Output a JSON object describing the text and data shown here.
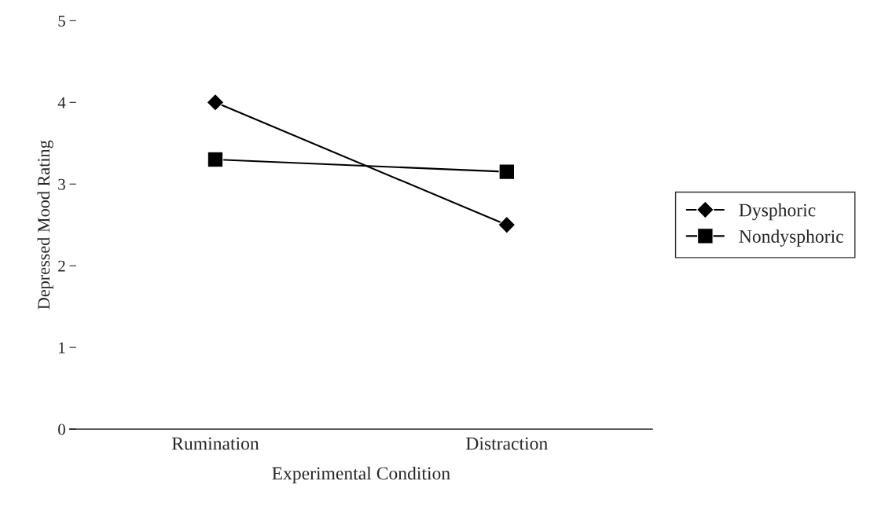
{
  "chart_data": {
    "type": "line",
    "xlabel": "Experimental Condition",
    "ylabel": "Depressed Mood Rating",
    "categories": [
      "Rumination",
      "Distraction"
    ],
    "series": [
      {
        "name": "Dysphoric",
        "color": "#000000",
        "values": [
          4.0,
          2.5
        ],
        "marker": "diamond"
      },
      {
        "name": "Nondysphoric",
        "color": "#000000",
        "values": [
          3.3,
          3.15
        ],
        "marker": "square"
      }
    ],
    "ylim": [
      0,
      5
    ],
    "yticks": [
      0,
      1,
      2,
      3,
      4,
      5
    ],
    "grid": false,
    "legend": "right",
    "line_style": "solid"
  }
}
